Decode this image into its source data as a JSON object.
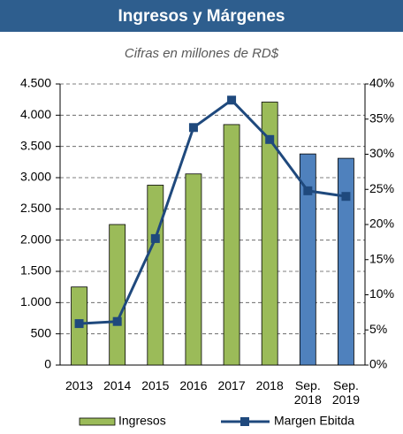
{
  "chart_data": {
    "type": "bar-line",
    "title": "Ingresos y Márgenes",
    "subtitle": "Cifras en millones de RD$",
    "categories": [
      "2013",
      "2014",
      "2015",
      "2016",
      "2017",
      "2018",
      "Sep. 2018",
      "Sep. 2019"
    ],
    "series": [
      {
        "name": "Ingresos",
        "type": "bar",
        "color": "#9bbb59",
        "colors": [
          "#9bbb59",
          "#9bbb59",
          "#9bbb59",
          "#9bbb59",
          "#9bbb59",
          "#9bbb59",
          "#4f81bd",
          "#4f81bd"
        ],
        "values": [
          1250,
          2250,
          2880,
          3060,
          3850,
          4210,
          3380,
          3310
        ]
      },
      {
        "name": "Margen Ebitda",
        "type": "line",
        "axis": "y2",
        "color": "#1f497d",
        "values": [
          5.9,
          6.2,
          18.0,
          33.8,
          37.7,
          32.1,
          24.8,
          24.0
        ]
      }
    ],
    "ylim": [
      0,
      4500
    ],
    "yticks": [
      0,
      500,
      {
        "value": 1000,
        "label": "1.000"
      },
      {
        "value": 1500,
        "label": "1.500"
      },
      {
        "value": 2000,
        "label": "2.000"
      },
      {
        "value": 2500,
        "label": "2.500"
      },
      {
        "value": 3000,
        "label": "3.000"
      },
      {
        "value": 3500,
        "label": "3.500"
      },
      {
        "value": 4000,
        "label": "4.000"
      },
      {
        "value": 4500,
        "label": "4.500"
      }
    ],
    "y2lim": [
      0,
      40
    ],
    "y2ticks": [
      {
        "value": 0,
        "label": "0%"
      },
      {
        "value": 5,
        "label": "5%"
      },
      {
        "value": 10,
        "label": "10%"
      },
      {
        "value": 15,
        "label": "15%"
      },
      {
        "value": 20,
        "label": "20%"
      },
      {
        "value": 25,
        "label": "25%"
      },
      {
        "value": 30,
        "label": "30%"
      },
      {
        "value": 35,
        "label": "35%"
      },
      {
        "value": 40,
        "label": "40%"
      }
    ],
    "grid": true,
    "legend": "bottom"
  }
}
